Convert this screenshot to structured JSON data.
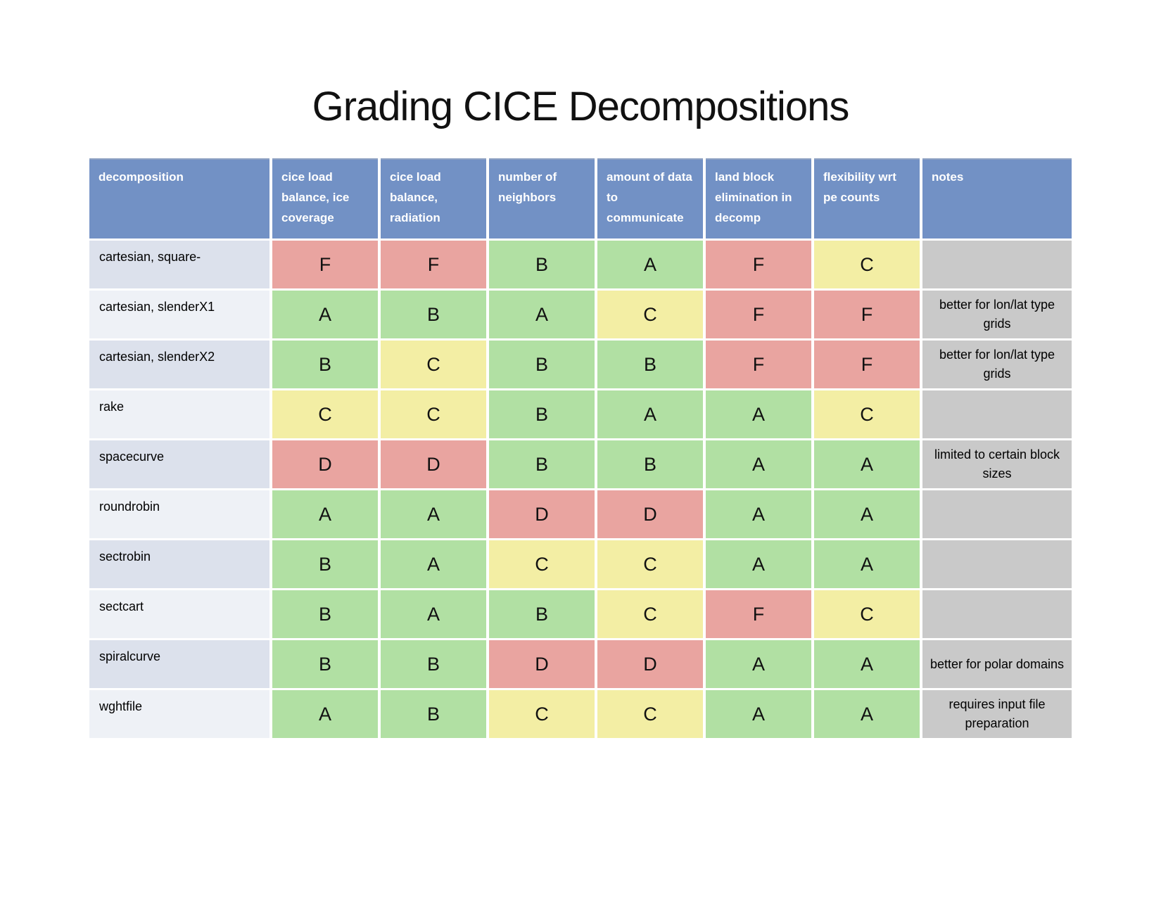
{
  "title": "Grading CICE Decompositions",
  "table": {
    "columns": [
      "decomposition",
      "cice load balance, ice coverage",
      "cice load balance, radiation",
      "number of neighbors",
      "amount of data to communicate",
      "land block elimination in decomp",
      "flexibility wrt pe counts",
      "notes"
    ],
    "rows": [
      {
        "name": "cartesian, square-",
        "grades": [
          "F",
          "F",
          "B",
          "A",
          "F",
          "C"
        ],
        "notes": ""
      },
      {
        "name": "cartesian, slenderX1",
        "grades": [
          "A",
          "B",
          "A",
          "C",
          "F",
          "F"
        ],
        "notes": "better for lon/lat type grids"
      },
      {
        "name": "cartesian, slenderX2",
        "grades": [
          "B",
          "C",
          "B",
          "B",
          "F",
          "F"
        ],
        "notes": "better for lon/lat type grids"
      },
      {
        "name": "rake",
        "grades": [
          "C",
          "C",
          "B",
          "A",
          "A",
          "C"
        ],
        "notes": ""
      },
      {
        "name": "spacecurve",
        "grades": [
          "D",
          "D",
          "B",
          "B",
          "A",
          "A"
        ],
        "notes": "limited to certain block sizes"
      },
      {
        "name": "roundrobin",
        "grades": [
          "A",
          "A",
          "D",
          "D",
          "A",
          "A"
        ],
        "notes": ""
      },
      {
        "name": "sectrobin",
        "grades": [
          "B",
          "A",
          "C",
          "C",
          "A",
          "A"
        ],
        "notes": ""
      },
      {
        "name": "sectcart",
        "grades": [
          "B",
          "A",
          "B",
          "C",
          "F",
          "C"
        ],
        "notes": ""
      },
      {
        "name": "spiralcurve",
        "grades": [
          "B",
          "B",
          "D",
          "D",
          "A",
          "A"
        ],
        "notes": "better for polar domains"
      },
      {
        "name": "wghtfile",
        "grades": [
          "A",
          "B",
          "C",
          "C",
          "A",
          "A"
        ],
        "notes": "requires input file preparation"
      }
    ],
    "grade_colors": {
      "A": "#b1e0a3",
      "B": "#b1e0a3",
      "C": "#f3eea4",
      "D": "#e9a4a0",
      "F": "#e9a4a0"
    },
    "colors": {
      "header_bg": "#7291c5",
      "header_text": "#ffffff",
      "row_label_dark": "#dce1ec",
      "row_label_light": "#eef1f6",
      "notes_bg": "#c9c9c9"
    }
  }
}
